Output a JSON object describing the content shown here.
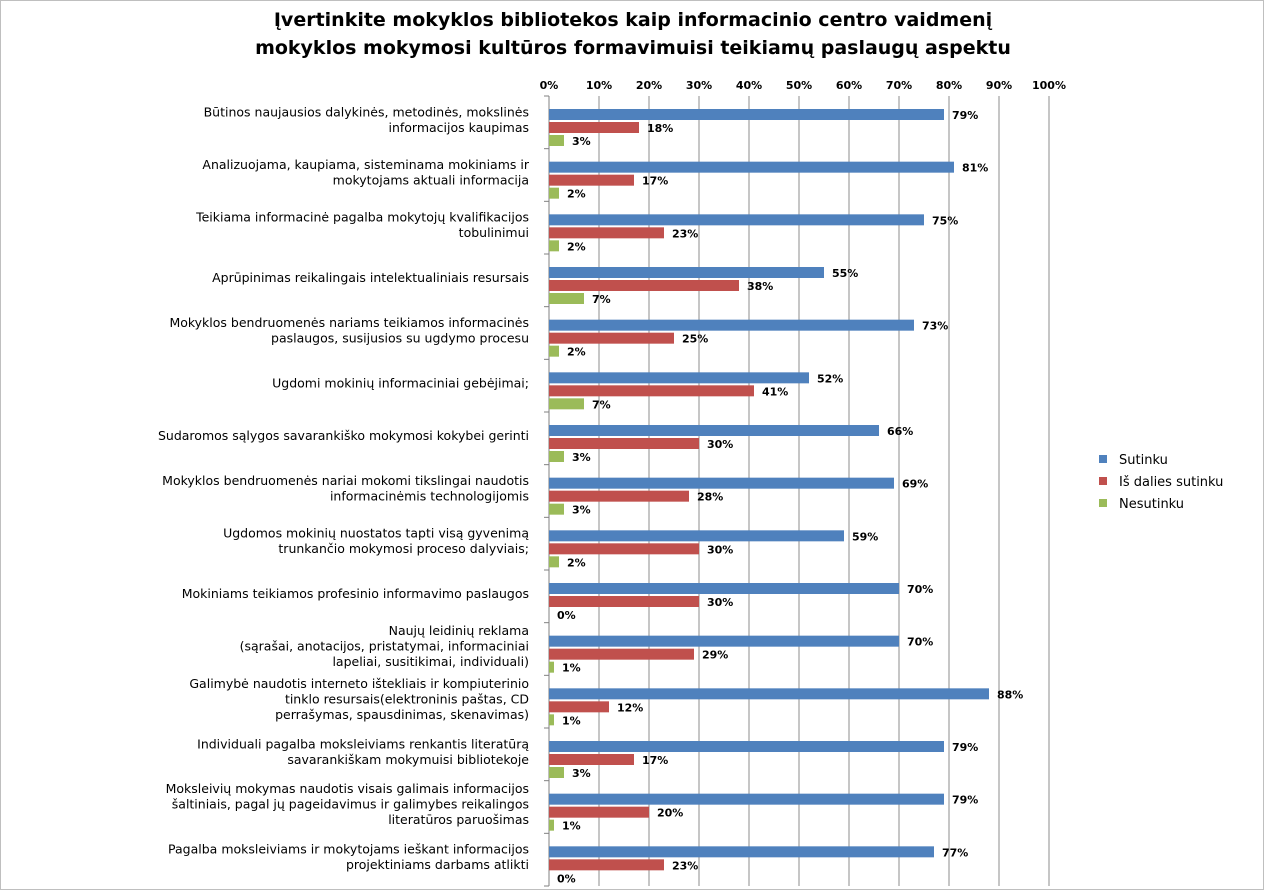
{
  "chart_data": {
    "type": "bar",
    "orientation": "horizontal",
    "title": [
      "Įvertinkite mokyklos bibliotekos kaip informacinio centro  vaidmenį",
      "mokyklos mokymosi kultūros formavimuisi  teikiamų paslaugų aspektu"
    ],
    "xlim": [
      0,
      100
    ],
    "x_ticks": [
      "0%",
      "10%",
      "20%",
      "30%",
      "40%",
      "50%",
      "60%",
      "70%",
      "80%",
      "90%",
      "100%"
    ],
    "x_axis_position": "top",
    "grid": true,
    "legend_position": "right",
    "categories": [
      [
        "Būtinos naujausios dalykinės, metodinės, mokslinės",
        "informacijos kaupimas"
      ],
      [
        "Analizuojama, kaupiama, sisteminama mokiniams ir",
        "mokytojams aktuali informacija"
      ],
      [
        "Teikiama informacinė pagalba mokytojų kvalifikacijos",
        "tobulinimui"
      ],
      [
        "Aprūpinimas reikalingais intelektualiniais resursais"
      ],
      [
        "Mokyklos bendruomenės nariams teikiamos informacinės",
        "paslaugos, susijusios su ugdymo procesu"
      ],
      [
        "Ugdomi mokinių informaciniai gebėjimai;"
      ],
      [
        "Sudaromos sąlygos savarankiško mokymosi kokybei  gerinti"
      ],
      [
        "Mokyklos bendruomenės nariai mokomi tikslingai naudotis",
        "informacinėmis technologijomis"
      ],
      [
        "Ugdomos mokinių nuostatos tapti visą gyvenimą",
        "trunkančio mokymosi proceso dalyviais;"
      ],
      [
        "Mokiniams teikiamos profesinio informavimo paslaugos"
      ],
      [
        "Naujų leidinių reklama",
        "(sąrašai, anotacijos, pristatymai, informaciniai",
        "lapeliai, susitikimai, individuali)"
      ],
      [
        "Galimybė naudotis interneto ištekliais ir kompiuterinio",
        "tinklo resursais(elektroninis paštas, CD",
        "perrašymas, spausdinimas, skenavimas)"
      ],
      [
        "Individuali pagalba moksleiviams renkantis literatūrą",
        "savarankiškam mokymuisi bibliotekoje"
      ],
      [
        "Moksleivių mokymas naudotis visais galimais informacijos",
        "šaltiniais, pagal jų pageidavimus ir galimybes reikalingos",
        "literatūros paruošimas"
      ],
      [
        "Pagalba moksleiviams ir mokytojams ieškant informacijos",
        "projektiniams darbams atlikti"
      ]
    ],
    "series": [
      {
        "name": "Sutinku",
        "color": "#4F81BD",
        "values": [
          79,
          81,
          75,
          55,
          73,
          52,
          66,
          69,
          59,
          70,
          70,
          88,
          79,
          79,
          77
        ]
      },
      {
        "name": "Iš dalies sutinku",
        "color": "#C0504D",
        "values": [
          18,
          17,
          23,
          38,
          25,
          41,
          30,
          28,
          30,
          30,
          29,
          12,
          17,
          20,
          23
        ]
      },
      {
        "name": "Nesutinku",
        "color": "#9BBB59",
        "values": [
          3,
          2,
          2,
          7,
          2,
          7,
          3,
          3,
          2,
          0,
          1,
          1,
          3,
          1,
          0
        ]
      }
    ],
    "value_suffix": "%"
  }
}
